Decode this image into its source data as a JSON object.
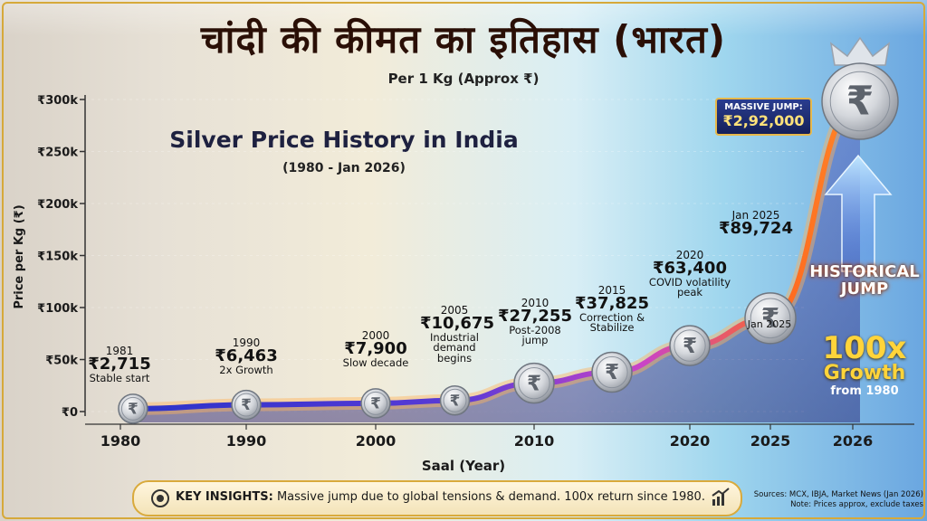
{
  "title_hindi": "चांदी की कीमत का इतिहास (भारत)",
  "subtitle": "Per 1 Kg (Approx ₹)",
  "chart_data": {
    "type": "line",
    "title": "Silver Price History in India",
    "subtitle": "(1980 - Jan 2026)",
    "xlabel": "Saal (Year)",
    "ylabel": "Price per Kg (₹)",
    "x_ticks": [
      "1980",
      "1990",
      "2000",
      "2010",
      "2020",
      "2025",
      "2026"
    ],
    "y_ticks": [
      "₹0",
      "₹50k",
      "₹100k",
      "₹150k",
      "₹200k",
      "₹250k",
      "₹300k"
    ],
    "ylim": [
      0,
      300000
    ],
    "series": [
      {
        "points": [
          {
            "x": 1981,
            "y": 2715
          },
          {
            "x": 1990,
            "y": 6463
          },
          {
            "x": 2000,
            "y": 7900
          },
          {
            "x": 2005,
            "y": 10675
          },
          {
            "x": 2010,
            "y": 27255
          },
          {
            "x": 2015,
            "y": 37825
          },
          {
            "x": 2020,
            "y": 63400
          },
          {
            "x": 2025,
            "y": 89724
          },
          {
            "x": 2026,
            "y": 292000
          }
        ]
      }
    ],
    "annotations": [
      {
        "year": "1981",
        "price": "₹2,715",
        "note": "Stable start"
      },
      {
        "year": "1990",
        "price": "₹6,463",
        "note": "2x Growth"
      },
      {
        "year": "2000",
        "price": "₹7,900",
        "note": "Slow decade"
      },
      {
        "year": "2005",
        "price": "₹10,675",
        "note": "Industrial demand begins"
      },
      {
        "year": "2010",
        "price": "₹27,255",
        "note": "Post-2008 jump"
      },
      {
        "year": "2015",
        "price": "₹37,825",
        "note": "Correction & Stabilize"
      },
      {
        "year": "2020",
        "price": "₹63,400",
        "note": "COVID volatility peak"
      },
      {
        "year": "Jan 2025",
        "price": "₹89,724",
        "note": ""
      }
    ],
    "coin_caption": "Jan 2025",
    "massive_jump_label": "MASSIVE JUMP:",
    "massive_jump_value": "₹2,92,000",
    "historical_jump": "HISTORICAL JUMP",
    "growth_big": "100x",
    "growth_word": "Growth",
    "growth_from": "from 1980",
    "colors": {
      "line_start": "#2b33c9",
      "line_mid": "#b23fd1",
      "line_end": "#ff6a1f",
      "accent_gold": "#d9aa3c"
    }
  },
  "insights": {
    "label": "KEY INSIGHTS:",
    "text": "Massive jump due to global tensions & demand. 100x return since 1980."
  },
  "sources": {
    "line1": "Sources: MCX, IBJA, Market News (Jan 2026)",
    "line2": "Note: Prices approx, exclude taxes"
  }
}
